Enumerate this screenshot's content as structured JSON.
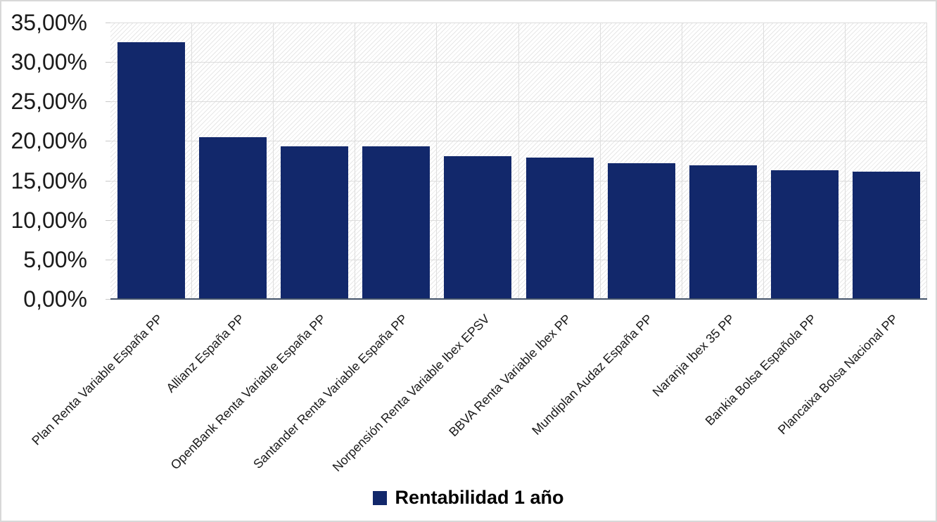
{
  "chart_data": {
    "type": "bar",
    "title": "",
    "categories": [
      "Plan Renta Variable España PP",
      "Allianz España PP",
      "OpenBank Renta Variable España PP",
      "Santander Renta Variable España PP",
      "Norpensión Renta Variable Ibex EPSV",
      "BBVA Renta Variable Ibex PP",
      "Mundiplan Audaz España PP",
      "Naranja Ibex 35 PP",
      "Bankia Bolsa Española PP",
      "Plancaixa Bolsa Nacional PP"
    ],
    "series": [
      {
        "name": "Rentabilidad 1 año",
        "values": [
          32.5,
          20.5,
          19.3,
          19.3,
          18.1,
          17.9,
          17.2,
          16.9,
          16.3,
          16.1
        ]
      }
    ],
    "series_name": "Rentabilidad 1 año",
    "xlabel": "",
    "ylabel": "",
    "ylim": [
      0,
      35
    ],
    "y_tick_step": 5,
    "y_tick_labels": [
      "35,00%",
      "30,00%",
      "25,00%",
      "20,00%",
      "15,00%",
      "10,00%",
      "5,00%",
      "0,00%"
    ],
    "grid": true,
    "legend_position": "bottom",
    "legend_entries": [
      "Rentabilidad 1 año"
    ]
  },
  "ui": {
    "colors": {
      "bar": "#12286B",
      "legend_swatch": "#12286B",
      "axis_line": "#44546A",
      "gridline": "#DCDCDC",
      "tick": "#C9C9C9",
      "text": "#1A1A1A",
      "frame_border": "#D8D8D8"
    }
  }
}
